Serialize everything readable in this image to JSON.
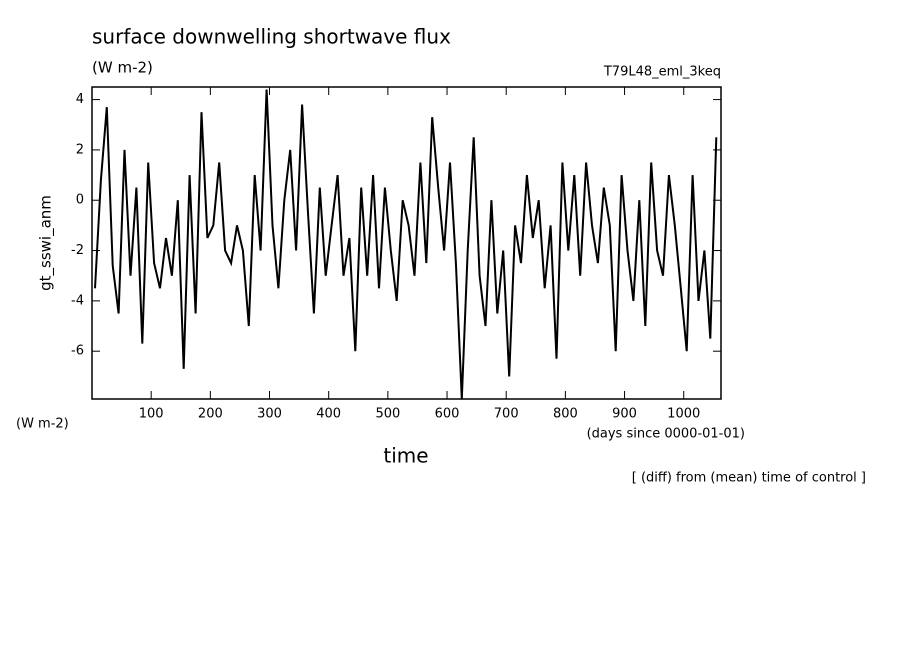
{
  "chart_data": {
    "type": "line",
    "title": "surface downwelling shortwave flux",
    "subtitle": "(W m-2)",
    "run_label": "T79L48_eml_3keq",
    "y_label": "gt_sswi_anm",
    "y_unit": "(W m-2)",
    "x_unit": "(days since 0000-01-01)",
    "x_label": "time",
    "note": "[ (diff) from (mean) time of control ]",
    "xlim": [
      0,
      1063
    ],
    "ylim": [
      -7.9,
      4.5
    ],
    "xticks": [
      100,
      200,
      300,
      400,
      500,
      600,
      700,
      800,
      900,
      1000
    ],
    "yticks": [
      -6,
      -4,
      -2,
      0,
      2,
      4
    ],
    "series": [
      {
        "name": "gt_sswi_anm",
        "color": "#000000",
        "x": [
          5,
          15,
          25,
          35,
          45,
          55,
          65,
          75,
          85,
          95,
          105,
          115,
          125,
          135,
          145,
          155,
          165,
          175,
          185,
          195,
          205,
          215,
          225,
          235,
          245,
          255,
          265,
          275,
          285,
          295,
          305,
          315,
          325,
          335,
          345,
          355,
          365,
          375,
          385,
          395,
          405,
          415,
          425,
          435,
          445,
          455,
          465,
          475,
          485,
          495,
          505,
          515,
          525,
          535,
          545,
          555,
          565,
          575,
          585,
          595,
          605,
          615,
          625,
          635,
          645,
          655,
          665,
          675,
          685,
          695,
          705,
          715,
          725,
          735,
          745,
          755,
          765,
          775,
          785,
          795,
          805,
          815,
          825,
          835,
          845,
          855,
          865,
          875,
          885,
          895,
          905,
          915,
          925,
          935,
          945,
          955,
          965,
          975,
          985,
          995,
          1005,
          1015,
          1025,
          1035,
          1045,
          1055
        ],
        "values": [
          -3.5,
          0.8,
          3.7,
          -2.6,
          -4.5,
          2,
          -3,
          0.5,
          -5.7,
          1.5,
          -2.5,
          -3.5,
          -1.5,
          -3,
          0,
          -6.7,
          1,
          -4.5,
          3.5,
          -1.5,
          -1,
          1.5,
          -2,
          -2.5,
          -1,
          -2,
          -5,
          1,
          -2,
          4.4,
          -1,
          -3.5,
          0,
          2,
          -2,
          3.8,
          -0.5,
          -4.5,
          0.5,
          -3,
          -1,
          1,
          -3,
          -1.5,
          -6,
          0.5,
          -3,
          1,
          -3.5,
          0.5,
          -2,
          -4,
          0,
          -1,
          -3,
          1.5,
          -2.5,
          3.3,
          0.5,
          -2,
          1.5,
          -2.5,
          -7.9,
          -2,
          2.5,
          -3,
          -5,
          0,
          -4.5,
          -2,
          -7,
          -1,
          -2.5,
          1,
          -1.5,
          0,
          -3.5,
          -1,
          -6.3,
          1.5,
          -2,
          1,
          -3,
          1.5,
          -1,
          -2.5,
          0.5,
          -1,
          -6,
          1,
          -2,
          -4,
          0,
          -5,
          1.5,
          -2,
          -3,
          1,
          -1,
          -3.5,
          -6,
          1,
          -4,
          -2,
          -5.5,
          2.5
        ]
      }
    ]
  }
}
